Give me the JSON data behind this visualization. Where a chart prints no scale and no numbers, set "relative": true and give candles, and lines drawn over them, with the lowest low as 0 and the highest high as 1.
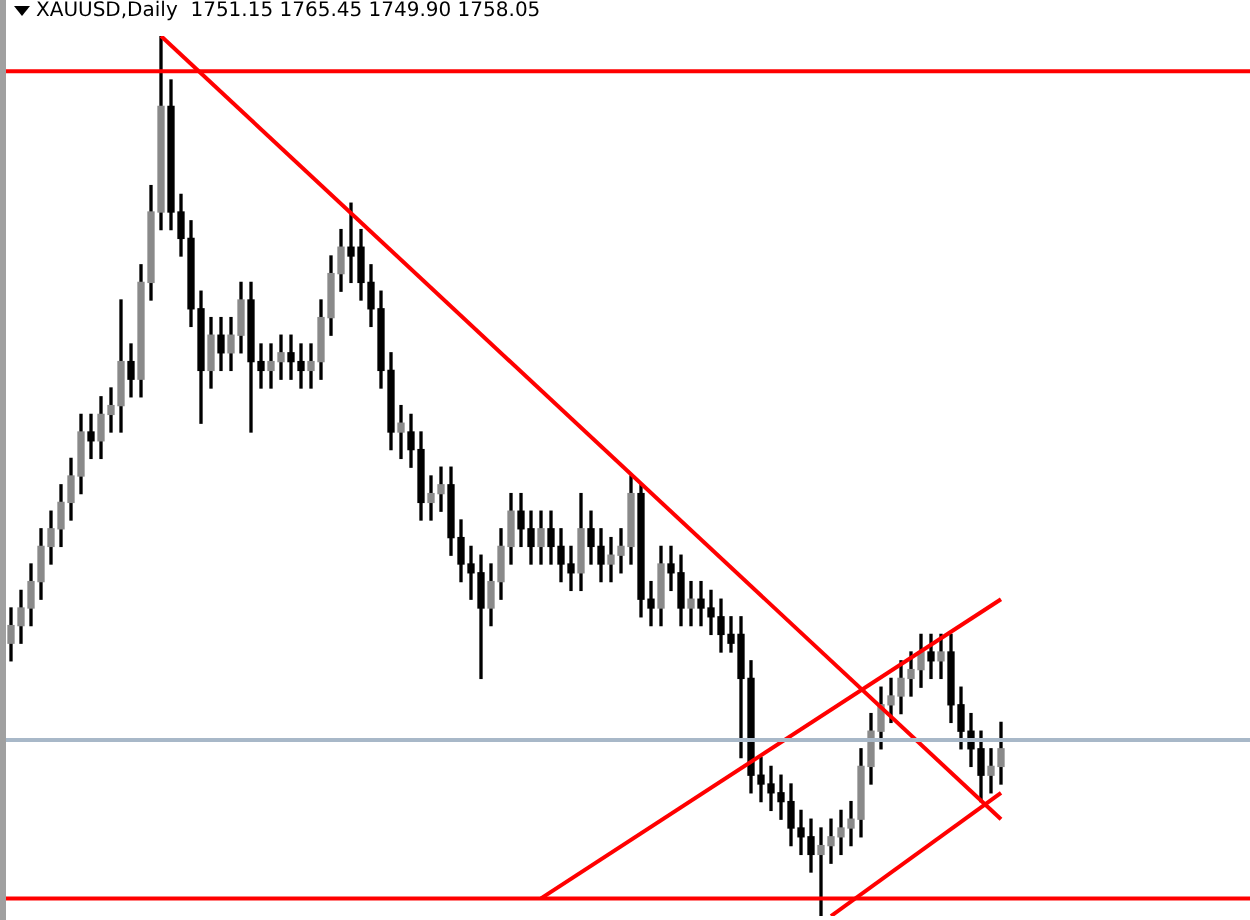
{
  "chart_data": {
    "type": "candlestick",
    "title": "XAUUSD,Daily  1751.15 1765.45 1749.90 1758.05",
    "relative": true,
    "legend": false,
    "marker": "none",
    "categories": [
      null,
      null,
      null,
      null,
      null,
      null,
      null,
      null,
      null,
      null,
      null,
      null,
      null,
      null,
      null,
      null,
      null,
      null,
      null,
      null,
      null,
      null,
      null,
      null,
      null,
      null,
      null,
      null,
      null,
      null,
      null,
      null,
      null,
      null,
      null,
      null,
      null,
      null,
      null,
      null,
      null,
      null,
      null,
      null,
      null,
      null,
      null,
      null,
      null,
      null,
      null,
      null,
      null,
      null,
      null,
      null,
      null,
      null,
      null,
      null,
      null,
      null,
      null,
      null,
      null,
      null,
      null,
      null,
      null,
      null,
      null,
      null,
      null,
      null,
      null,
      null,
      null,
      null,
      null,
      null,
      null,
      null,
      null,
      null,
      null,
      null,
      null,
      null,
      null,
      null,
      null,
      null,
      null,
      null,
      null,
      null,
      null,
      null,
      null,
      null
    ],
    "ohlc": [
      [
        0.31,
        0.35,
        0.29,
        0.33
      ],
      [
        0.33,
        0.37,
        0.31,
        0.35
      ],
      [
        0.35,
        0.4,
        0.33,
        0.38
      ],
      [
        0.38,
        0.44,
        0.36,
        0.42
      ],
      [
        0.42,
        0.46,
        0.4,
        0.44
      ],
      [
        0.44,
        0.49,
        0.42,
        0.47
      ],
      [
        0.47,
        0.52,
        0.45,
        0.5
      ],
      [
        0.5,
        0.57,
        0.48,
        0.55
      ],
      [
        0.55,
        0.57,
        0.52,
        0.54
      ],
      [
        0.54,
        0.59,
        0.52,
        0.57
      ],
      [
        0.57,
        0.6,
        0.55,
        0.58
      ],
      [
        0.58,
        0.7,
        0.55,
        0.63
      ],
      [
        0.63,
        0.65,
        0.59,
        0.61
      ],
      [
        0.61,
        0.74,
        0.59,
        0.72
      ],
      [
        0.72,
        0.83,
        0.7,
        0.8
      ],
      [
        0.8,
        1,
        0.78,
        0.92
      ],
      [
        0.92,
        0.95,
        0.78,
        0.8
      ],
      [
        0.8,
        0.82,
        0.75,
        0.77
      ],
      [
        0.77,
        0.79,
        0.67,
        0.69
      ],
      [
        0.69,
        0.71,
        0.56,
        0.62
      ],
      [
        0.62,
        0.68,
        0.6,
        0.66
      ],
      [
        0.66,
        0.68,
        0.62,
        0.64
      ],
      [
        0.64,
        0.68,
        0.62,
        0.66
      ],
      [
        0.66,
        0.72,
        0.64,
        0.7
      ],
      [
        0.7,
        0.72,
        0.55,
        0.63
      ],
      [
        0.63,
        0.65,
        0.6,
        0.62
      ],
      [
        0.62,
        0.65,
        0.6,
        0.63
      ],
      [
        0.63,
        0.66,
        0.61,
        0.64
      ],
      [
        0.64,
        0.66,
        0.61,
        0.63
      ],
      [
        0.63,
        0.65,
        0.6,
        0.62
      ],
      [
        0.62,
        0.65,
        0.6,
        0.63
      ],
      [
        0.63,
        0.7,
        0.61,
        0.68
      ],
      [
        0.68,
        0.75,
        0.66,
        0.73
      ],
      [
        0.73,
        0.78,
        0.71,
        0.76
      ],
      [
        0.76,
        0.81,
        0.72,
        0.75
      ],
      [
        0.76,
        0.78,
        0.7,
        0.72
      ],
      [
        0.72,
        0.74,
        0.67,
        0.69
      ],
      [
        0.69,
        0.71,
        0.6,
        0.62
      ],
      [
        0.62,
        0.64,
        0.53,
        0.55
      ],
      [
        0.55,
        0.58,
        0.52,
        0.56
      ],
      [
        0.55,
        0.57,
        0.51,
        0.53
      ],
      [
        0.53,
        0.55,
        0.45,
        0.47
      ],
      [
        0.47,
        0.5,
        0.45,
        0.48
      ],
      [
        0.48,
        0.51,
        0.46,
        0.49
      ],
      [
        0.49,
        0.51,
        0.41,
        0.43
      ],
      [
        0.43,
        0.45,
        0.38,
        0.4
      ],
      [
        0.4,
        0.42,
        0.36,
        0.39
      ],
      [
        0.39,
        0.41,
        0.27,
        0.35
      ],
      [
        0.35,
        0.4,
        0.33,
        0.38
      ],
      [
        0.38,
        0.44,
        0.36,
        0.42
      ],
      [
        0.42,
        0.48,
        0.4,
        0.46
      ],
      [
        0.46,
        0.48,
        0.42,
        0.44
      ],
      [
        0.44,
        0.46,
        0.4,
        0.42
      ],
      [
        0.42,
        0.46,
        0.4,
        0.44
      ],
      [
        0.44,
        0.46,
        0.4,
        0.42
      ],
      [
        0.42,
        0.44,
        0.38,
        0.4
      ],
      [
        0.4,
        0.42,
        0.37,
        0.39
      ],
      [
        0.39,
        0.48,
        0.37,
        0.44
      ],
      [
        0.44,
        0.46,
        0.4,
        0.42
      ],
      [
        0.42,
        0.44,
        0.38,
        0.4
      ],
      [
        0.4,
        0.43,
        0.38,
        0.41
      ],
      [
        0.41,
        0.44,
        0.39,
        0.42
      ],
      [
        0.42,
        0.5,
        0.4,
        0.48
      ],
      [
        0.48,
        0.49,
        0.34,
        0.36
      ],
      [
        0.36,
        0.38,
        0.33,
        0.35
      ],
      [
        0.35,
        0.42,
        0.33,
        0.4
      ],
      [
        0.4,
        0.42,
        0.37,
        0.39
      ],
      [
        0.39,
        0.41,
        0.33,
        0.35
      ],
      [
        0.35,
        0.38,
        0.33,
        0.36
      ],
      [
        0.36,
        0.38,
        0.33,
        0.35
      ],
      [
        0.35,
        0.37,
        0.32,
        0.34
      ],
      [
        0.34,
        0.36,
        0.3,
        0.32
      ],
      [
        0.32,
        0.34,
        0.3,
        0.31
      ],
      [
        0.32,
        0.34,
        0.18,
        0.27
      ],
      [
        0.27,
        0.29,
        0.14,
        0.16
      ],
      [
        0.16,
        0.18,
        0.13,
        0.15
      ],
      [
        0.15,
        0.17,
        0.12,
        0.14
      ],
      [
        0.14,
        0.16,
        0.11,
        0.13
      ],
      [
        0.13,
        0.15,
        0.08,
        0.1
      ],
      [
        0.1,
        0.12,
        0.07,
        0.09
      ],
      [
        0.09,
        0.11,
        0.05,
        0.07
      ],
      [
        0.07,
        0.1,
        0,
        0.08
      ],
      [
        0.08,
        0.11,
        0.06,
        0.09
      ],
      [
        0.09,
        0.12,
        0.07,
        0.1
      ],
      [
        0.1,
        0.13,
        0.08,
        0.11
      ],
      [
        0.11,
        0.19,
        0.09,
        0.17
      ],
      [
        0.17,
        0.23,
        0.15,
        0.21
      ],
      [
        0.21,
        0.26,
        0.19,
        0.24
      ],
      [
        0.24,
        0.27,
        0.22,
        0.25
      ],
      [
        0.25,
        0.29,
        0.23,
        0.27
      ],
      [
        0.27,
        0.3,
        0.25,
        0.28
      ],
      [
        0.28,
        0.32,
        0.26,
        0.3
      ],
      [
        0.3,
        0.32,
        0.27,
        0.29
      ],
      [
        0.29,
        0.32,
        0.27,
        0.3
      ],
      [
        0.3,
        0.32,
        0.22,
        0.24
      ],
      [
        0.24,
        0.26,
        0.19,
        0.21
      ],
      [
        0.21,
        0.23,
        0.17,
        0.19
      ],
      [
        0.19,
        0.21,
        0.13,
        0.16
      ],
      [
        0.16,
        0.19,
        0.14,
        0.17
      ],
      [
        0.17,
        0.22,
        0.15,
        0.19
      ]
    ],
    "series": [
      {
        "type": "line",
        "color": "#ff0000",
        "values": [
          null,
          null,
          null,
          null,
          null,
          null,
          null,
          null,
          null,
          null,
          null,
          null,
          null,
          null,
          null,
          1,
          null,
          null,
          null,
          null,
          null,
          null,
          null,
          null,
          null,
          null,
          null,
          null,
          null,
          null,
          null,
          null,
          null,
          null,
          null,
          null,
          null,
          null,
          null,
          null,
          null,
          null,
          null,
          null,
          null,
          null,
          null,
          null,
          null,
          null,
          null,
          null,
          null,
          null,
          null,
          null,
          null,
          null,
          null,
          null,
          null,
          null,
          null,
          null,
          null,
          null,
          null,
          null,
          null,
          null,
          null,
          null,
          null,
          null,
          null,
          null,
          null,
          null,
          null,
          null,
          null,
          null,
          null,
          null,
          null,
          null,
          null,
          null,
          null,
          null,
          null,
          null,
          null,
          null,
          null,
          null,
          null,
          null,
          null,
          0.11
        ]
      },
      {
        "type": "line",
        "color": "#ff0000",
        "values": [
          null,
          null,
          null,
          null,
          null,
          null,
          null,
          null,
          null,
          null,
          null,
          null,
          null,
          null,
          null,
          null,
          null,
          null,
          null,
          null,
          null,
          null,
          null,
          null,
          null,
          null,
          null,
          null,
          null,
          null,
          null,
          null,
          null,
          null,
          null,
          null,
          null,
          null,
          null,
          null,
          null,
          null,
          null,
          null,
          null,
          null,
          null,
          null,
          null,
          null,
          null,
          null,
          null,
          0.02,
          null,
          null,
          null,
          null,
          null,
          null,
          null,
          null,
          null,
          null,
          null,
          null,
          null,
          null,
          null,
          null,
          null,
          null,
          null,
          null,
          null,
          null,
          null,
          null,
          null,
          null,
          null,
          null,
          null,
          null,
          null,
          null,
          null,
          null,
          null,
          null,
          null,
          null,
          null,
          null,
          null,
          null,
          null,
          null,
          null,
          0.36
        ]
      },
      {
        "type": "line",
        "color": "#ff0000",
        "values": [
          null,
          null,
          null,
          null,
          null,
          null,
          null,
          null,
          null,
          null,
          null,
          null,
          null,
          null,
          null,
          null,
          null,
          null,
          null,
          null,
          null,
          null,
          null,
          null,
          null,
          null,
          null,
          null,
          null,
          null,
          null,
          null,
          null,
          null,
          null,
          null,
          null,
          null,
          null,
          null,
          null,
          null,
          null,
          null,
          null,
          null,
          null,
          null,
          null,
          null,
          null,
          null,
          null,
          null,
          null,
          null,
          null,
          null,
          null,
          null,
          null,
          null,
          null,
          null,
          null,
          null,
          null,
          null,
          null,
          null,
          null,
          null,
          null,
          null,
          null,
          null,
          null,
          null,
          null,
          null,
          null,
          null,
          0,
          null,
          null,
          null,
          null,
          null,
          null,
          null,
          null,
          null,
          null,
          null,
          null,
          null,
          null,
          null,
          null,
          0.14
        ]
      }
    ],
    "ref_lines": [
      {
        "axis": "y",
        "value": 0.96,
        "color": "#ff0000"
      },
      {
        "axis": "y",
        "value": 0.02,
        "color": "#ff0000"
      },
      {
        "axis": "y",
        "value": 0.2,
        "color": "#a8b8c8"
      }
    ]
  }
}
